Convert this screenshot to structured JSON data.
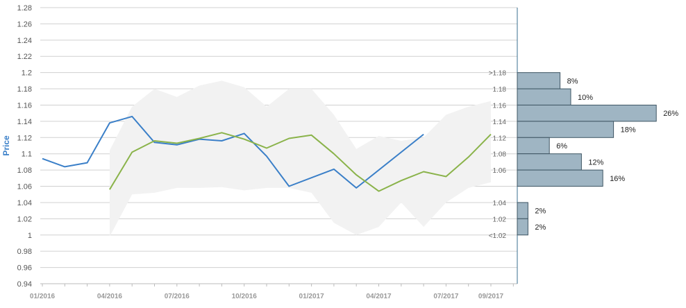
{
  "chart_data": {
    "type": "line",
    "title": "",
    "ylabel": "Price",
    "xlabel": "",
    "ylim": [
      0.94,
      1.28
    ],
    "y_ticks": [
      1.28,
      1.26,
      1.24,
      1.22,
      1.2,
      1.18,
      1.16,
      1.14,
      1.12,
      1.1,
      1.08,
      1.06,
      1.04,
      1.02,
      1,
      0.98,
      0.96,
      0.94
    ],
    "x_tick_labels": [
      "01/2016",
      "04/2016",
      "07/2016",
      "10/2016",
      "01/2017",
      "04/2017",
      "07/2017",
      "09/2017"
    ],
    "x_tick_dates": [
      "2016-01",
      "2016-04",
      "2016-07",
      "2016-10",
      "2017-01",
      "2017-04",
      "2017-07",
      "2017-09"
    ],
    "grid": true,
    "series": [
      {
        "color": "#3a7fc8",
        "points": [
          {
            "x": "2016-01",
            "y": 1.094
          },
          {
            "x": "2016-02",
            "y": 1.084
          },
          {
            "x": "2016-03",
            "y": 1.089
          },
          {
            "x": "2016-04",
            "y": 1.138
          },
          {
            "x": "2016-05",
            "y": 1.146
          },
          {
            "x": "2016-06",
            "y": 1.114
          },
          {
            "x": "2016-07",
            "y": 1.111
          },
          {
            "x": "2016-08",
            "y": 1.118
          },
          {
            "x": "2016-09",
            "y": 1.116
          },
          {
            "x": "2016-10",
            "y": 1.125
          },
          {
            "x": "2016-11",
            "y": 1.097
          },
          {
            "x": "2016-12",
            "y": 1.06
          },
          {
            "x": "2017-02",
            "y": 1.081
          },
          {
            "x": "2017-03",
            "y": 1.058
          },
          {
            "x": "2017-06",
            "y": 1.124
          }
        ]
      },
      {
        "color": "#8ab34a",
        "points": [
          {
            "x": "2016-04",
            "y": 1.056
          },
          {
            "x": "2016-05",
            "y": 1.102
          },
          {
            "x": "2016-06",
            "y": 1.116
          },
          {
            "x": "2016-07",
            "y": 1.113
          },
          {
            "x": "2016-08",
            "y": 1.119
          },
          {
            "x": "2016-09",
            "y": 1.126
          },
          {
            "x": "2016-10",
            "y": 1.118
          },
          {
            "x": "2016-11",
            "y": 1.107
          },
          {
            "x": "2016-12",
            "y": 1.119
          },
          {
            "x": "2017-01",
            "y": 1.123
          },
          {
            "x": "2017-02",
            "y": 1.1
          },
          {
            "x": "2017-03",
            "y": 1.074
          },
          {
            "x": "2017-04",
            "y": 1.054
          },
          {
            "x": "2017-05",
            "y": 1.067
          },
          {
            "x": "2017-06",
            "y": 1.078
          },
          {
            "x": "2017-07",
            "y": 1.072
          },
          {
            "x": "2017-08",
            "y": 1.096
          },
          {
            "x": "2017-09",
            "y": 1.124
          }
        ]
      }
    ],
    "range_band": {
      "color": "#f2f2f2",
      "points": [
        {
          "x": "2016-04",
          "low": 0.998,
          "high": 1.104
        },
        {
          "x": "2016-05",
          "low": 1.05,
          "high": 1.158
        },
        {
          "x": "2016-06",
          "low": 1.052,
          "high": 1.18
        },
        {
          "x": "2016-07",
          "low": 1.058,
          "high": 1.17
        },
        {
          "x": "2016-08",
          "low": 1.058,
          "high": 1.184
        },
        {
          "x": "2016-09",
          "low": 1.059,
          "high": 1.19
        },
        {
          "x": "2016-10",
          "low": 1.055,
          "high": 1.182
        },
        {
          "x": "2016-11",
          "low": 1.058,
          "high": 1.158
        },
        {
          "x": "2016-12",
          "low": 1.058,
          "high": 1.18
        },
        {
          "x": "2017-01",
          "low": 1.052,
          "high": 1.18
        },
        {
          "x": "2017-02",
          "low": 1.015,
          "high": 1.148
        },
        {
          "x": "2017-03",
          "low": 1.0,
          "high": 1.106
        },
        {
          "x": "2017-04",
          "low": 1.01,
          "high": 1.122
        },
        {
          "x": "2017-05",
          "low": 1.04,
          "high": 1.116
        },
        {
          "x": "2017-06",
          "low": 1.01,
          "high": 1.12
        },
        {
          "x": "2017-07",
          "low": 1.04,
          "high": 1.148
        },
        {
          "x": "2017-08",
          "low": 1.058,
          "high": 1.158
        },
        {
          "x": "2017-09",
          "low": 1.065,
          "high": 1.165
        }
      ]
    },
    "distribution": {
      "bar_color": "#9fb5c3",
      "bins": [
        {
          "label": ">1.18",
          "y_low": 1.18,
          "y_high": 1.2,
          "pct": 8,
          "pct_label": "8%"
        },
        {
          "label": "1.18",
          "y_low": 1.16,
          "y_high": 1.18,
          "pct": 10,
          "pct_label": "10%"
        },
        {
          "label": "1.16",
          "y_low": 1.14,
          "y_high": 1.16,
          "pct": 26,
          "pct_label": "26%"
        },
        {
          "label": "1.14",
          "y_low": 1.12,
          "y_high": 1.14,
          "pct": 18,
          "pct_label": "18%"
        },
        {
          "label": "1.12",
          "y_low": 1.1,
          "y_high": 1.12,
          "pct": 6,
          "pct_label": "6%"
        },
        {
          "label": "1.08",
          "y_low": 1.08,
          "y_high": 1.1,
          "pct": 12,
          "pct_label": "12%"
        },
        {
          "label": "1.06",
          "y_low": 1.06,
          "y_high": 1.08,
          "pct": 16,
          "pct_label": "16%"
        },
        {
          "label": "1.04",
          "y_low": 1.02,
          "y_high": 1.04,
          "pct": 2,
          "pct_label": "2%"
        },
        {
          "label": "1.02",
          "y_low": 1.0,
          "y_high": 1.02,
          "pct": 2,
          "pct_label": "2%"
        }
      ],
      "extra_labels": [
        {
          "label": "<1.02",
          "y": 1.0
        }
      ]
    }
  }
}
